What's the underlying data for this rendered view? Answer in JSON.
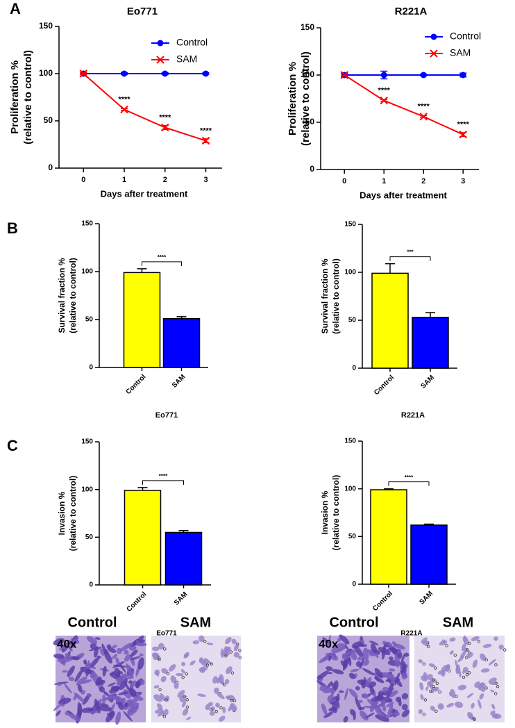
{
  "panel_labels": [
    "A",
    "B",
    "C"
  ],
  "chart_data": [
    {
      "type": "line",
      "title": "Eo771",
      "xlabel": "Days after treatment",
      "ylabel": [
        "Proliferation %",
        "(relative to control)"
      ],
      "x": [
        0,
        1,
        2,
        3
      ],
      "xlim": [
        -0.6,
        3.4
      ],
      "xticks": [
        0,
        1,
        2,
        3
      ],
      "ylim": [
        0,
        150
      ],
      "yticks": [
        0,
        50,
        100,
        150
      ],
      "legend": "upper right",
      "series": [
        {
          "name": "Control",
          "color": "#0000ff",
          "marker": "circle",
          "values": [
            100,
            100,
            100,
            100
          ],
          "errors": [
            1,
            1,
            1,
            1
          ]
        },
        {
          "name": "SAM",
          "color": "#ff0000",
          "marker": "x",
          "values": [
            100,
            62,
            43,
            29
          ],
          "errors": [
            1,
            1,
            2,
            2
          ],
          "significance": [
            null,
            "****",
            "****",
            "****"
          ]
        }
      ]
    },
    {
      "type": "line",
      "title": "R221A",
      "xlabel": "Days after treatment",
      "ylabel": [
        "Proliferation %",
        "(relative to control)"
      ],
      "x": [
        0,
        1,
        2,
        3
      ],
      "xlim": [
        -0.6,
        3.4
      ],
      "xticks": [
        0,
        1,
        2,
        3
      ],
      "ylim": [
        0,
        150
      ],
      "yticks": [
        0,
        50,
        100,
        150
      ],
      "legend": "upper right",
      "series": [
        {
          "name": "Control",
          "color": "#0000ff",
          "marker": "circle",
          "values": [
            100,
            100,
            100,
            100
          ],
          "errors": [
            2,
            4,
            1,
            2
          ]
        },
        {
          "name": "SAM",
          "color": "#ff0000",
          "marker": "x",
          "values": [
            100,
            73,
            56,
            37
          ],
          "errors": [
            1,
            1,
            1,
            2
          ],
          "significance": [
            null,
            "****",
            "****",
            "****"
          ]
        }
      ]
    },
    {
      "type": "bar",
      "ylabel": [
        "Survival fraction %",
        "(relative to control)"
      ],
      "categories": [
        "Control",
        "SAM"
      ],
      "values": [
        99,
        51
      ],
      "errors": [
        4,
        2
      ],
      "colors": [
        "#ffff00",
        "#0000ff"
      ],
      "ylim": [
        0,
        150
      ],
      "yticks": [
        0,
        50,
        100,
        150
      ],
      "significance": "****"
    },
    {
      "type": "bar",
      "ylabel": [
        "Survival fraction %",
        "(relative to control)"
      ],
      "categories": [
        "Control",
        "SAM"
      ],
      "values": [
        99,
        53
      ],
      "errors": [
        10,
        5
      ],
      "colors": [
        "#ffff00",
        "#0000ff"
      ],
      "ylim": [
        0,
        150
      ],
      "yticks": [
        0,
        50,
        100,
        150
      ],
      "significance": "***"
    },
    {
      "type": "bar",
      "title": "Eo771",
      "ylabel": [
        "Invasion %",
        "(relative to control)"
      ],
      "categories": [
        "Control",
        "SAM"
      ],
      "values": [
        99,
        55
      ],
      "errors": [
        3,
        2
      ],
      "colors": [
        "#ffff00",
        "#0000ff"
      ],
      "ylim": [
        0,
        150
      ],
      "yticks": [
        0,
        50,
        100,
        150
      ],
      "significance": "****"
    },
    {
      "type": "bar",
      "title": "R221A",
      "ylabel": [
        "Invasion %",
        "(relative to control)"
      ],
      "categories": [
        "Control",
        "SAM"
      ],
      "values": [
        99,
        62
      ],
      "errors": [
        1,
        1
      ],
      "colors": [
        "#ffff00",
        "#0000ff"
      ],
      "ylim": [
        0,
        150
      ],
      "yticks": [
        0,
        50,
        100,
        150
      ],
      "significance": "****"
    }
  ],
  "micrographs": [
    {
      "title": "Eo771",
      "labels": [
        "Control",
        "SAM"
      ],
      "magnification": "40x"
    },
    {
      "title": "R221A",
      "labels": [
        "Control",
        "SAM"
      ],
      "magnification": "40x"
    }
  ]
}
